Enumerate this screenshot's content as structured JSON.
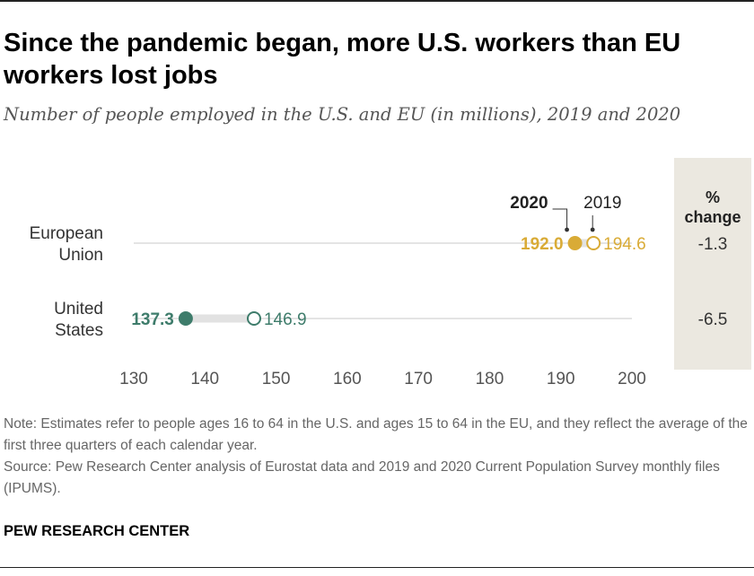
{
  "header": {
    "title": "Since the pandemic began, more U.S. workers than EU workers lost jobs",
    "subtitle": "Number of people employed in the U.S. and EU (in millions), 2019 and 2020"
  },
  "chart_data": {
    "type": "dot",
    "title": "Since the pandemic began, more U.S. workers than EU workers lost jobs",
    "subtitle": "Number of people employed in the U.S. and EU (in millions), 2019 and 2020",
    "xlim": [
      130,
      200
    ],
    "x_ticks": [
      130,
      140,
      150,
      160,
      170,
      180,
      190,
      200
    ],
    "legend": {
      "y2020": "2020",
      "y2019": "2019"
    },
    "pct_change_header": [
      "%",
      "change"
    ],
    "rows": [
      {
        "label": [
          "European",
          "Union"
        ],
        "v2020": 192.0,
        "v2019": 194.6,
        "label2020": "192.0",
        "label2019": "194.6",
        "pct_change": "-1.3",
        "color": "#d9ab36"
      },
      {
        "label": [
          "United",
          "States"
        ],
        "v2020": 137.3,
        "v2019": 146.9,
        "label2020": "137.3",
        "label2019": "146.9",
        "pct_change": "-6.5",
        "color": "#3e7c6b"
      }
    ]
  },
  "footer": {
    "note": "Note: Estimates refer to people ages 16 to 64 in the U.S. and ages 15 to 64 in the EU, and they reflect the average of the first three quarters of each calendar year.",
    "source": "Source: Pew Research Center analysis of Eurostat data and 2019 and 2020 Current Population Survey monthly files (IPUMS).",
    "brand": "PEW RESEARCH CENTER"
  }
}
